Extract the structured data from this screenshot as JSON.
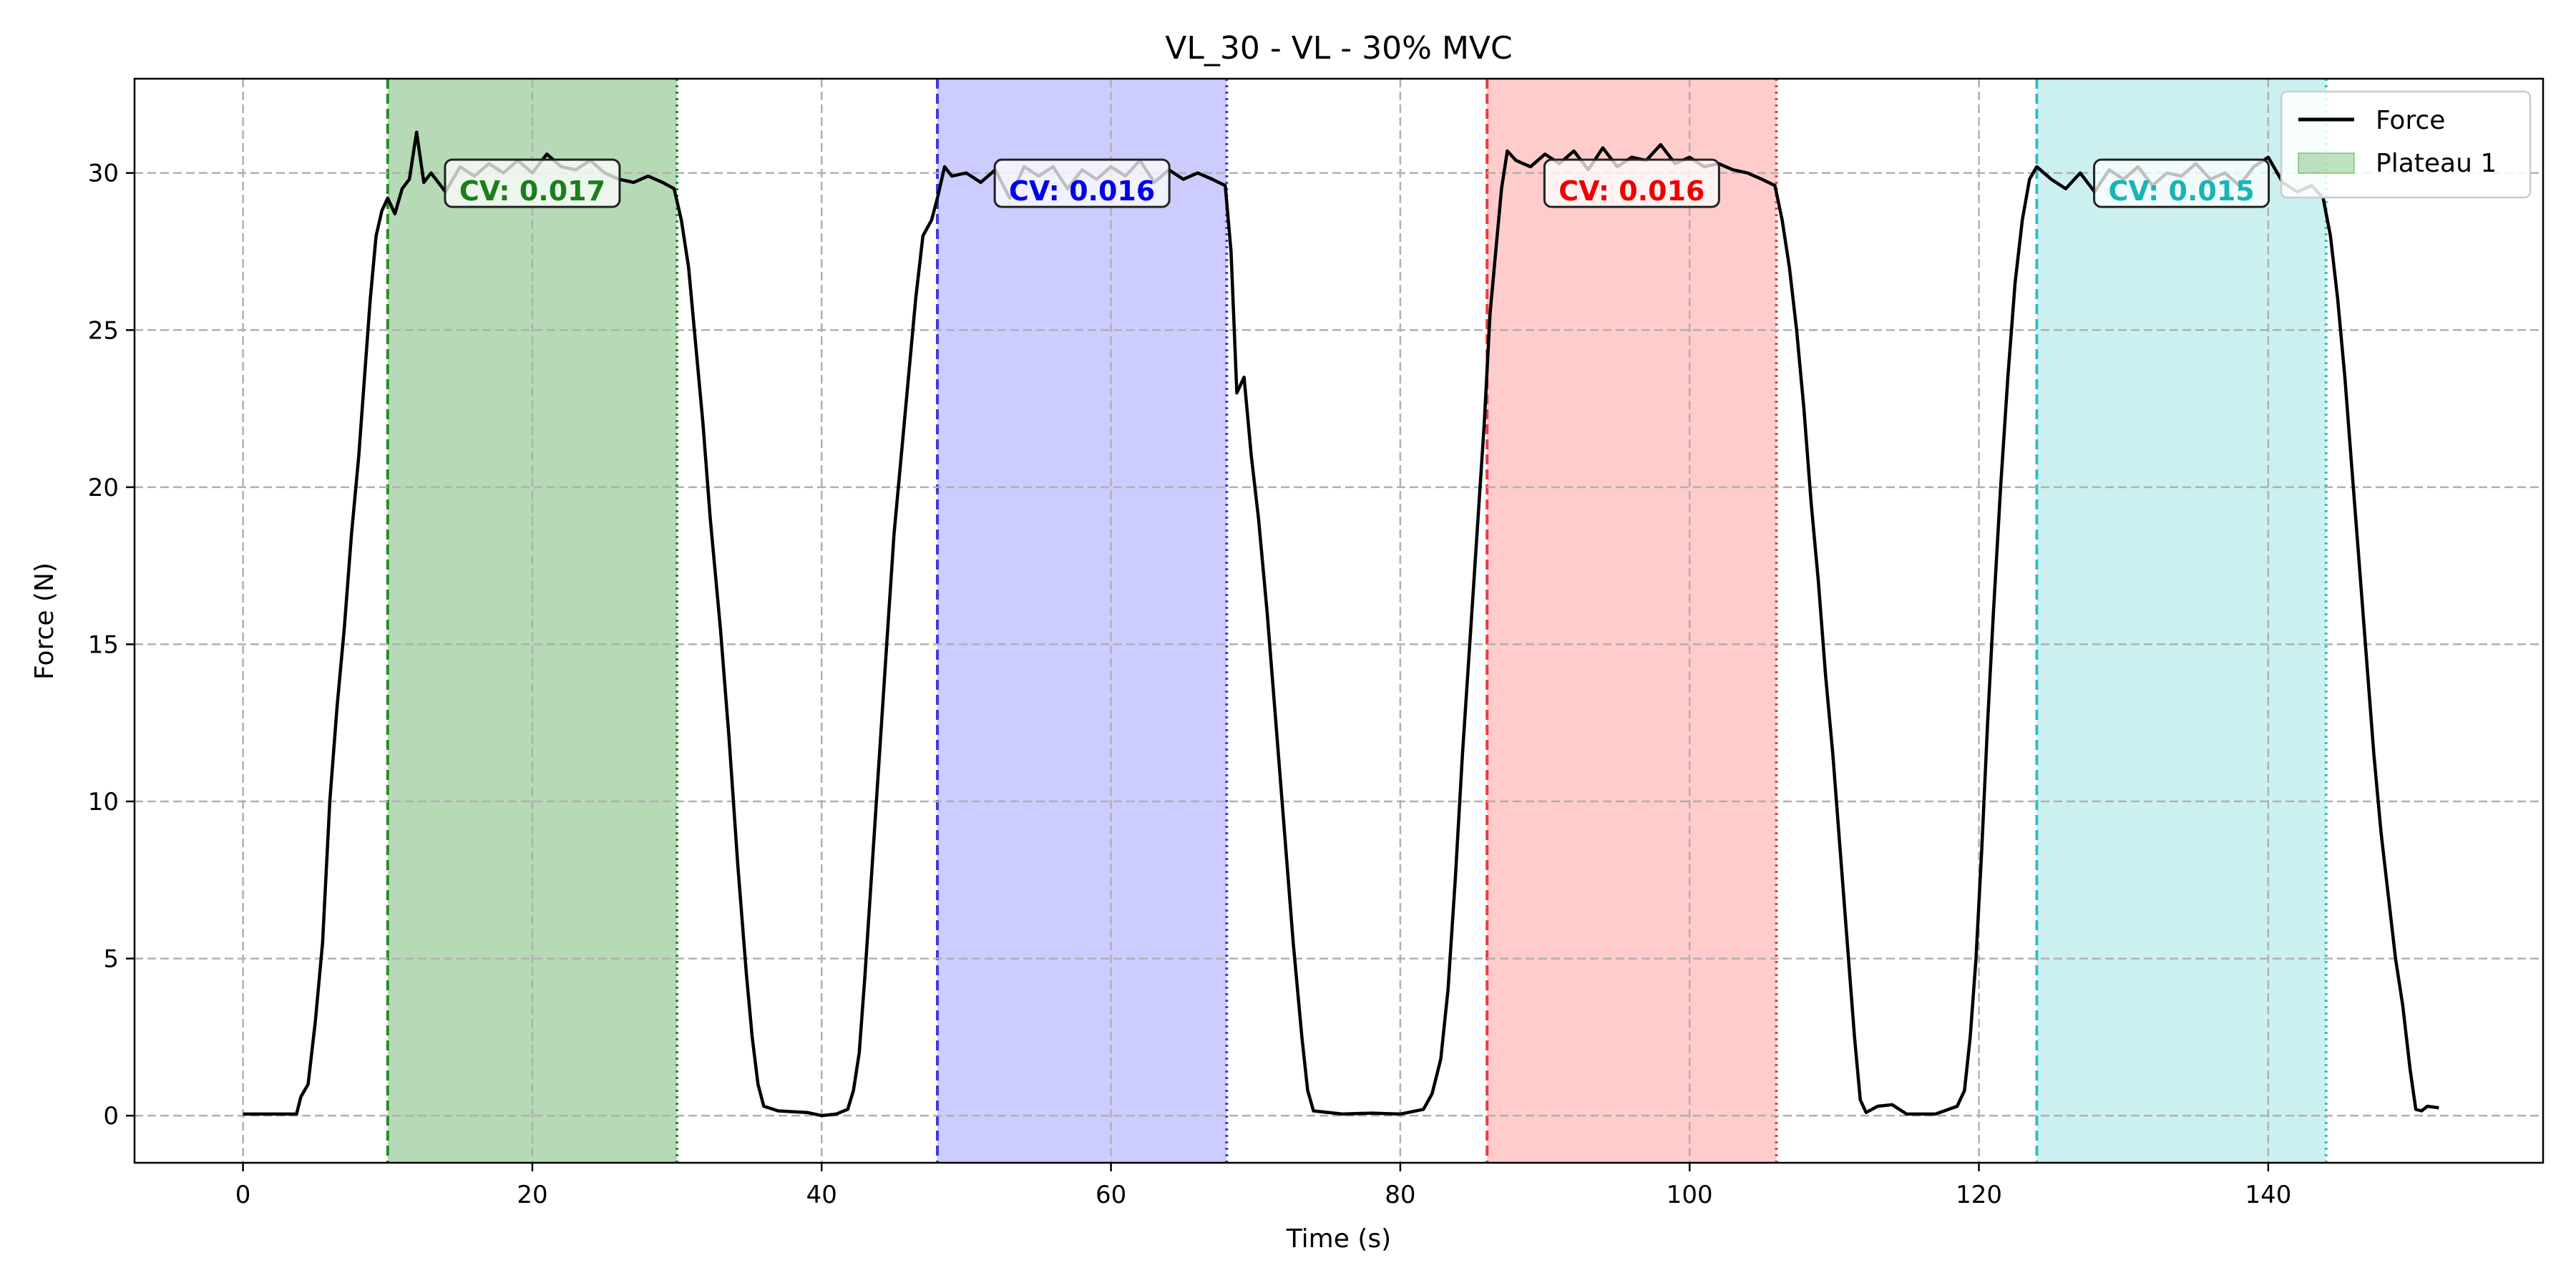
{
  "chart_data": {
    "type": "line",
    "title": "VL_30 - VL - 30% MVC",
    "xlabel": "Time (s)",
    "ylabel": "Force (N)",
    "xlim": [
      -7.5,
      159
    ],
    "ylim": [
      -1.5,
      33
    ],
    "xticks": [
      0,
      20,
      40,
      60,
      80,
      100,
      120,
      140
    ],
    "yticks": [
      0,
      5,
      10,
      15,
      20,
      25,
      30
    ],
    "grid": true,
    "legend": {
      "placement": "top-right",
      "entries": [
        {
          "label": "Force",
          "kind": "line",
          "color": "#000000"
        },
        {
          "label": "Plateau 1",
          "kind": "patch",
          "color": "#2ca02c"
        }
      ]
    },
    "series": [
      {
        "name": "Force",
        "color": "#000000",
        "points": [
          [
            0,
            0.05
          ],
          [
            3.7,
            0.05
          ],
          [
            4.0,
            0.6
          ],
          [
            4.5,
            1.0
          ],
          [
            5.0,
            3.0
          ],
          [
            5.5,
            5.5
          ],
          [
            6.0,
            10.0
          ],
          [
            6.5,
            13.0
          ],
          [
            7.0,
            15.5
          ],
          [
            7.5,
            18.5
          ],
          [
            8.0,
            21.0
          ],
          [
            8.4,
            23.5
          ],
          [
            8.8,
            26.0
          ],
          [
            9.2,
            28.0
          ],
          [
            9.6,
            28.8
          ],
          [
            10.0,
            29.2
          ],
          [
            10.5,
            28.7
          ],
          [
            11.0,
            29.5
          ],
          [
            11.5,
            29.8
          ],
          [
            12.0,
            31.3
          ],
          [
            12.5,
            29.7
          ],
          [
            13.0,
            30.0
          ],
          [
            14.0,
            29.4
          ],
          [
            15.0,
            30.2
          ],
          [
            16.0,
            29.9
          ],
          [
            17.0,
            30.3
          ],
          [
            18.0,
            30.0
          ],
          [
            19.0,
            30.4
          ],
          [
            20.0,
            30.0
          ],
          [
            21.0,
            30.6
          ],
          [
            22.0,
            30.2
          ],
          [
            23.0,
            30.1
          ],
          [
            24.0,
            30.4
          ],
          [
            25.0,
            30.0
          ],
          [
            26.0,
            29.8
          ],
          [
            27.0,
            29.7
          ],
          [
            28.0,
            29.9
          ],
          [
            29.0,
            29.7
          ],
          [
            29.8,
            29.5
          ],
          [
            30.3,
            28.5
          ],
          [
            30.8,
            27.0
          ],
          [
            31.3,
            24.5
          ],
          [
            31.8,
            22.0
          ],
          [
            32.3,
            19.0
          ],
          [
            33.0,
            15.5
          ],
          [
            33.6,
            12.0
          ],
          [
            34.2,
            8.0
          ],
          [
            34.8,
            4.5
          ],
          [
            35.2,
            2.5
          ],
          [
            35.6,
            1.0
          ],
          [
            36.0,
            0.3
          ],
          [
            37.0,
            0.15
          ],
          [
            39.0,
            0.1
          ],
          [
            40.0,
            0.0
          ],
          [
            41.0,
            0.05
          ],
          [
            41.8,
            0.2
          ],
          [
            42.2,
            0.8
          ],
          [
            42.6,
            2.0
          ],
          [
            43.0,
            4.5
          ],
          [
            43.5,
            8.0
          ],
          [
            44.0,
            11.5
          ],
          [
            44.5,
            15.0
          ],
          [
            45.0,
            18.5
          ],
          [
            45.5,
            21.0
          ],
          [
            46.0,
            23.5
          ],
          [
            46.5,
            26.0
          ],
          [
            47.0,
            28.0
          ],
          [
            47.6,
            28.5
          ],
          [
            48.0,
            29.2
          ],
          [
            48.5,
            30.2
          ],
          [
            49.0,
            29.9
          ],
          [
            50.0,
            30.0
          ],
          [
            51.0,
            29.7
          ],
          [
            52.0,
            30.1
          ],
          [
            53.0,
            29.2
          ],
          [
            54.0,
            30.2
          ],
          [
            55.0,
            29.9
          ],
          [
            56.0,
            30.2
          ],
          [
            57.0,
            29.5
          ],
          [
            58.0,
            30.1
          ],
          [
            59.0,
            29.8
          ],
          [
            60.0,
            30.2
          ],
          [
            61.0,
            29.9
          ],
          [
            62.0,
            30.4
          ],
          [
            63.0,
            29.7
          ],
          [
            64.0,
            30.1
          ],
          [
            65.0,
            29.8
          ],
          [
            66.0,
            30.0
          ],
          [
            67.0,
            29.8
          ],
          [
            67.9,
            29.6
          ],
          [
            68.3,
            27.5
          ],
          [
            68.7,
            23.0
          ],
          [
            69.2,
            23.5
          ],
          [
            69.7,
            21.0
          ],
          [
            70.2,
            19.0
          ],
          [
            70.8,
            16.0
          ],
          [
            71.4,
            12.5
          ],
          [
            72.0,
            9.0
          ],
          [
            72.6,
            5.5
          ],
          [
            73.2,
            2.5
          ],
          [
            73.6,
            0.8
          ],
          [
            74.0,
            0.15
          ],
          [
            76.0,
            0.05
          ],
          [
            78.0,
            0.08
          ],
          [
            80.0,
            0.05
          ],
          [
            81.6,
            0.2
          ],
          [
            82.2,
            0.7
          ],
          [
            82.8,
            1.8
          ],
          [
            83.3,
            4.0
          ],
          [
            83.8,
            7.5
          ],
          [
            84.3,
            11.5
          ],
          [
            84.8,
            15.0
          ],
          [
            85.3,
            18.5
          ],
          [
            85.8,
            22.0
          ],
          [
            86.2,
            25.5
          ],
          [
            86.6,
            27.5
          ],
          [
            87.0,
            29.5
          ],
          [
            87.4,
            30.7
          ],
          [
            88.0,
            30.4
          ],
          [
            89.0,
            30.2
          ],
          [
            90.0,
            30.6
          ],
          [
            91.0,
            30.3
          ],
          [
            92.0,
            30.7
          ],
          [
            93.0,
            30.1
          ],
          [
            94.0,
            30.8
          ],
          [
            95.0,
            30.2
          ],
          [
            96.0,
            30.5
          ],
          [
            97.0,
            30.4
          ],
          [
            98.0,
            30.9
          ],
          [
            99.0,
            30.3
          ],
          [
            100.0,
            30.5
          ],
          [
            101.0,
            30.2
          ],
          [
            102.0,
            30.3
          ],
          [
            103.0,
            30.1
          ],
          [
            104.0,
            30.0
          ],
          [
            105.0,
            29.8
          ],
          [
            105.9,
            29.6
          ],
          [
            106.4,
            28.5
          ],
          [
            106.9,
            27.0
          ],
          [
            107.4,
            25.0
          ],
          [
            107.9,
            22.5
          ],
          [
            108.4,
            19.5
          ],
          [
            108.9,
            17.0
          ],
          [
            109.4,
            14.0
          ],
          [
            109.9,
            11.5
          ],
          [
            110.4,
            8.5
          ],
          [
            110.9,
            5.5
          ],
          [
            111.4,
            2.5
          ],
          [
            111.8,
            0.5
          ],
          [
            112.2,
            0.1
          ],
          [
            113.0,
            0.3
          ],
          [
            114.0,
            0.35
          ],
          [
            115.0,
            0.05
          ],
          [
            117.0,
            0.05
          ],
          [
            118.5,
            0.3
          ],
          [
            119.0,
            0.8
          ],
          [
            119.4,
            2.5
          ],
          [
            119.8,
            5.0
          ],
          [
            120.2,
            8.5
          ],
          [
            120.6,
            12.5
          ],
          [
            121.0,
            16.0
          ],
          [
            121.5,
            20.0
          ],
          [
            122.0,
            23.5
          ],
          [
            122.5,
            26.5
          ],
          [
            123.0,
            28.5
          ],
          [
            123.5,
            29.8
          ],
          [
            124.0,
            30.2
          ],
          [
            125.0,
            29.8
          ],
          [
            126.0,
            29.5
          ],
          [
            127.0,
            30.0
          ],
          [
            128.0,
            29.4
          ],
          [
            129.0,
            30.1
          ],
          [
            130.0,
            29.8
          ],
          [
            131.0,
            30.2
          ],
          [
            132.0,
            29.6
          ],
          [
            133.0,
            30.0
          ],
          [
            134.0,
            29.9
          ],
          [
            135.0,
            30.3
          ],
          [
            136.0,
            29.8
          ],
          [
            137.0,
            30.0
          ],
          [
            138.0,
            29.6
          ],
          [
            139.0,
            30.2
          ],
          [
            140.0,
            30.5
          ],
          [
            141.0,
            29.7
          ],
          [
            142.0,
            29.4
          ],
          [
            143.0,
            29.6
          ],
          [
            143.8,
            29.2
          ],
          [
            144.3,
            28.0
          ],
          [
            144.8,
            26.0
          ],
          [
            145.3,
            23.5
          ],
          [
            145.8,
            20.5
          ],
          [
            146.3,
            17.5
          ],
          [
            146.8,
            14.5
          ],
          [
            147.3,
            11.5
          ],
          [
            147.8,
            9.0
          ],
          [
            148.3,
            7.0
          ],
          [
            148.8,
            5.0
          ],
          [
            149.3,
            3.5
          ],
          [
            149.8,
            1.5
          ],
          [
            150.2,
            0.2
          ],
          [
            150.6,
            0.15
          ],
          [
            151.0,
            0.3
          ],
          [
            151.8,
            0.25
          ]
        ]
      }
    ],
    "plateaus": [
      {
        "start": 10,
        "end": 30,
        "color": "#2ca02c",
        "fill": "#b6d9b6",
        "boundary": "#2a8a2a",
        "cv_label": "CV: 0.017",
        "cv_color": "#1a7f1a",
        "label_x": 20
      },
      {
        "start": 48,
        "end": 68,
        "color": "#3333cc",
        "fill": "#ccccff",
        "boundary": "#3b3bdc",
        "cv_label": "CV: 0.016",
        "cv_color": "#0000ee",
        "label_x": 58
      },
      {
        "start": 86,
        "end": 106,
        "color": "#ee3333",
        "fill": "#ffcccc",
        "boundary": "#ee3b3b",
        "cv_label": "CV: 0.016",
        "cv_color": "#ee0000",
        "label_x": 96
      },
      {
        "start": 124,
        "end": 144,
        "color": "#20c0c0",
        "fill": "#ccf0f0",
        "boundary": "#2ac2c2",
        "cv_label": "CV: 0.015",
        "cv_color": "#19b5b5",
        "label_x": 134
      }
    ],
    "cv_label_y": 29.4
  }
}
